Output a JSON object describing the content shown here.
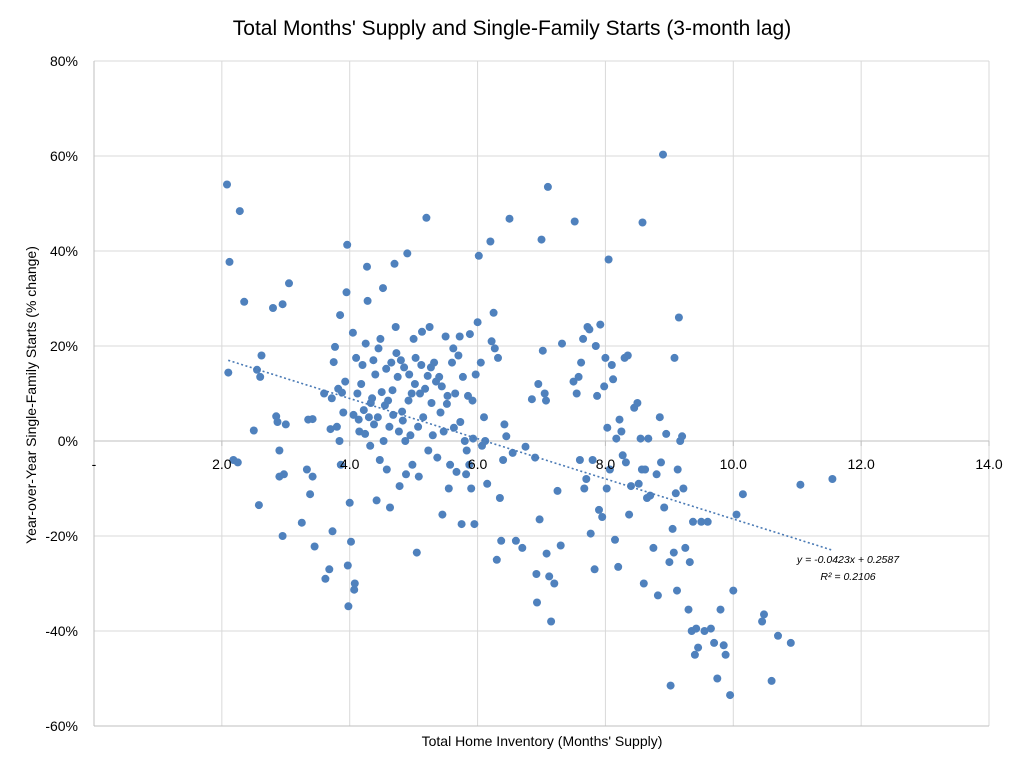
{
  "chart_data": {
    "type": "scatter",
    "title": "Total Months' Supply and Single-Family Starts (3-month lag)",
    "xlabel": "Total Home Inventory (Months' Supply)",
    "ylabel": "Year-over-Year Single-Family Starts (% change)",
    "xlim": [
      0,
      14
    ],
    "ylim": [
      -0.6,
      0.8
    ],
    "x_ticks": [
      {
        "value": 0,
        "label": "-"
      },
      {
        "value": 2,
        "label": "2.0"
      },
      {
        "value": 4,
        "label": "4.0"
      },
      {
        "value": 6,
        "label": "6.0"
      },
      {
        "value": 8,
        "label": "8.0"
      },
      {
        "value": 10,
        "label": "10.0"
      },
      {
        "value": 12,
        "label": "12.0"
      },
      {
        "value": 14,
        "label": "14.0"
      }
    ],
    "y_ticks": [
      {
        "value": 0.8,
        "label": "80%"
      },
      {
        "value": 0.6,
        "label": "60%"
      },
      {
        "value": 0.4,
        "label": "40%"
      },
      {
        "value": 0.2,
        "label": "20%"
      },
      {
        "value": 0.0,
        "label": "0%"
      },
      {
        "value": -0.2,
        "label": "-20%"
      },
      {
        "value": -0.4,
        "label": "-40%"
      },
      {
        "value": -0.6,
        "label": "-60%"
      }
    ],
    "grid": true,
    "marker_color": "#4f81bd",
    "trend_color": "#4a7ab5",
    "trendline": {
      "slope": -0.0423,
      "intercept": 0.2587,
      "x_range": [
        2.1,
        11.55
      ],
      "equation_label": "y = -0.0423x + 0.2587",
      "r2_label": "R² = 0.2106"
    },
    "points": [
      [
        2.08,
        0.54
      ],
      [
        2.12,
        0.377
      ],
      [
        2.28,
        0.484
      ],
      [
        2.35,
        0.293
      ],
      [
        2.1,
        0.144
      ],
      [
        2.18,
        -0.04
      ],
      [
        2.25,
        -0.045
      ],
      [
        2.5,
        0.022
      ],
      [
        2.55,
        0.15
      ],
      [
        2.6,
        0.135
      ],
      [
        2.62,
        0.18
      ],
      [
        2.58,
        -0.135
      ],
      [
        2.8,
        0.28
      ],
      [
        2.95,
        0.288
      ],
      [
        3.05,
        0.332
      ],
      [
        2.85,
        0.052
      ],
      [
        2.87,
        0.04
      ],
      [
        2.9,
        -0.02
      ],
      [
        2.9,
        -0.075
      ],
      [
        3.0,
        0.035
      ],
      [
        2.97,
        -0.07
      ],
      [
        2.95,
        -0.2
      ],
      [
        3.25,
        -0.172
      ],
      [
        3.35,
        0.045
      ],
      [
        3.33,
        -0.06
      ],
      [
        3.38,
        -0.112
      ],
      [
        3.42,
        0.046
      ],
      [
        3.42,
        -0.075
      ],
      [
        3.45,
        -0.222
      ],
      [
        3.6,
        0.1
      ],
      [
        3.62,
        -0.29
      ],
      [
        3.68,
        -0.27
      ],
      [
        3.7,
        0.025
      ],
      [
        3.72,
        0.09
      ],
      [
        3.73,
        -0.19
      ],
      [
        3.75,
        0.166
      ],
      [
        3.77,
        0.198
      ],
      [
        3.8,
        0.03
      ],
      [
        3.82,
        0.11
      ],
      [
        3.84,
        0.0
      ],
      [
        3.85,
        0.265
      ],
      [
        3.86,
        -0.05
      ],
      [
        3.88,
        0.102
      ],
      [
        3.9,
        0.06
      ],
      [
        3.93,
        0.125
      ],
      [
        3.95,
        0.313
      ],
      [
        3.96,
        0.413
      ],
      [
        3.97,
        -0.262
      ],
      [
        3.98,
        -0.348
      ],
      [
        4.0,
        -0.13
      ],
      [
        4.02,
        -0.212
      ],
      [
        4.05,
        0.228
      ],
      [
        4.06,
        0.055
      ],
      [
        4.07,
        -0.313
      ],
      [
        4.08,
        -0.3
      ],
      [
        4.1,
        0.175
      ],
      [
        4.12,
        0.1
      ],
      [
        4.14,
        0.045
      ],
      [
        4.15,
        0.02
      ],
      [
        4.18,
        0.12
      ],
      [
        4.2,
        0.16
      ],
      [
        4.22,
        0.065
      ],
      [
        4.24,
        0.015
      ],
      [
        4.25,
        0.205
      ],
      [
        4.27,
        0.367
      ],
      [
        4.28,
        0.295
      ],
      [
        4.3,
        0.05
      ],
      [
        4.32,
        -0.01
      ],
      [
        4.33,
        0.08
      ],
      [
        4.35,
        0.09
      ],
      [
        4.37,
        0.17
      ],
      [
        4.38,
        0.035
      ],
      [
        4.4,
        0.14
      ],
      [
        4.42,
        -0.125
      ],
      [
        4.44,
        0.05
      ],
      [
        4.45,
        0.195
      ],
      [
        4.47,
        -0.04
      ],
      [
        4.48,
        0.215
      ],
      [
        4.5,
        0.103
      ],
      [
        4.52,
        0.322
      ],
      [
        4.53,
        0.0
      ],
      [
        4.55,
        0.075
      ],
      [
        4.57,
        0.152
      ],
      [
        4.58,
        -0.06
      ],
      [
        4.6,
        0.085
      ],
      [
        4.62,
        0.03
      ],
      [
        4.63,
        -0.14
      ],
      [
        4.65,
        0.165
      ],
      [
        4.67,
        0.107
      ],
      [
        4.68,
        0.055
      ],
      [
        4.7,
        0.373
      ],
      [
        4.72,
        0.24
      ],
      [
        4.73,
        0.185
      ],
      [
        4.75,
        0.135
      ],
      [
        4.77,
        0.02
      ],
      [
        4.78,
        -0.095
      ],
      [
        4.8,
        0.17
      ],
      [
        4.82,
        0.062
      ],
      [
        4.83,
        0.043
      ],
      [
        4.85,
        0.155
      ],
      [
        4.87,
        0.0
      ],
      [
        4.88,
        -0.07
      ],
      [
        4.9,
        0.395
      ],
      [
        4.92,
        0.085
      ],
      [
        4.93,
        0.14
      ],
      [
        4.95,
        0.012
      ],
      [
        4.97,
        0.1
      ],
      [
        4.98,
        -0.05
      ],
      [
        5.0,
        0.215
      ],
      [
        5.02,
        0.12
      ],
      [
        5.03,
        0.175
      ],
      [
        5.05,
        -0.235
      ],
      [
        5.07,
        0.03
      ],
      [
        5.08,
        -0.075
      ],
      [
        5.1,
        0.1
      ],
      [
        5.12,
        0.16
      ],
      [
        5.13,
        0.23
      ],
      [
        5.15,
        0.05
      ],
      [
        5.18,
        0.11
      ],
      [
        5.2,
        0.47
      ],
      [
        5.22,
        0.137
      ],
      [
        5.23,
        -0.02
      ],
      [
        5.25,
        0.24
      ],
      [
        5.27,
        0.155
      ],
      [
        5.28,
        0.08
      ],
      [
        5.3,
        0.012
      ],
      [
        5.32,
        0.165
      ],
      [
        5.35,
        0.125
      ],
      [
        5.37,
        -0.035
      ],
      [
        5.4,
        0.135
      ],
      [
        5.42,
        0.06
      ],
      [
        5.44,
        0.115
      ],
      [
        5.45,
        -0.155
      ],
      [
        5.47,
        0.02
      ],
      [
        5.5,
        0.22
      ],
      [
        5.52,
        0.078
      ],
      [
        5.53,
        0.095
      ],
      [
        5.55,
        -0.1
      ],
      [
        5.57,
        -0.05
      ],
      [
        5.6,
        0.165
      ],
      [
        5.62,
        0.195
      ],
      [
        5.63,
        0.028
      ],
      [
        5.65,
        0.1
      ],
      [
        5.67,
        -0.065
      ],
      [
        5.7,
        0.18
      ],
      [
        5.72,
        0.22
      ],
      [
        5.73,
        0.04
      ],
      [
        5.75,
        -0.175
      ],
      [
        5.77,
        0.135
      ],
      [
        5.8,
        0.0
      ],
      [
        5.82,
        -0.07
      ],
      [
        5.83,
        -0.02
      ],
      [
        5.85,
        0.095
      ],
      [
        5.87,
        -0.05
      ],
      [
        5.88,
        0.225
      ],
      [
        5.9,
        -0.1
      ],
      [
        5.92,
        0.085
      ],
      [
        5.93,
        0.005
      ],
      [
        5.95,
        -0.175
      ],
      [
        5.97,
        0.14
      ],
      [
        6.0,
        0.25
      ],
      [
        6.02,
        0.39
      ],
      [
        6.05,
        0.165
      ],
      [
        6.07,
        -0.01
      ],
      [
        6.1,
        0.05
      ],
      [
        6.12,
        0.0
      ],
      [
        6.15,
        -0.09
      ],
      [
        6.2,
        0.42
      ],
      [
        6.22,
        0.21
      ],
      [
        6.25,
        0.27
      ],
      [
        6.27,
        0.195
      ],
      [
        6.3,
        -0.25
      ],
      [
        6.32,
        0.175
      ],
      [
        6.35,
        -0.12
      ],
      [
        6.37,
        -0.21
      ],
      [
        6.4,
        -0.04
      ],
      [
        6.42,
        0.035
      ],
      [
        6.45,
        0.01
      ],
      [
        6.5,
        0.468
      ],
      [
        6.55,
        -0.025
      ],
      [
        6.6,
        -0.21
      ],
      [
        6.7,
        -0.225
      ],
      [
        6.75,
        -0.012
      ],
      [
        6.85,
        0.088
      ],
      [
        6.9,
        -0.035
      ],
      [
        6.92,
        -0.28
      ],
      [
        6.93,
        -0.34
      ],
      [
        6.95,
        0.12
      ],
      [
        6.97,
        -0.165
      ],
      [
        7.0,
        0.424
      ],
      [
        7.02,
        0.19
      ],
      [
        7.05,
        0.1
      ],
      [
        7.07,
        0.085
      ],
      [
        7.08,
        -0.237
      ],
      [
        7.1,
        0.535
      ],
      [
        7.12,
        -0.285
      ],
      [
        7.15,
        -0.38
      ],
      [
        7.2,
        -0.3
      ],
      [
        7.25,
        -0.105
      ],
      [
        7.3,
        -0.22
      ],
      [
        7.32,
        0.205
      ],
      [
        7.5,
        0.125
      ],
      [
        7.52,
        0.462
      ],
      [
        7.55,
        0.1
      ],
      [
        7.58,
        0.135
      ],
      [
        7.6,
        -0.04
      ],
      [
        7.62,
        0.165
      ],
      [
        7.65,
        0.215
      ],
      [
        7.67,
        -0.1
      ],
      [
        7.7,
        -0.08
      ],
      [
        7.72,
        0.24
      ],
      [
        7.75,
        0.235
      ],
      [
        7.77,
        -0.195
      ],
      [
        7.8,
        -0.04
      ],
      [
        7.83,
        -0.27
      ],
      [
        7.85,
        0.2
      ],
      [
        7.87,
        0.095
      ],
      [
        7.9,
        -0.145
      ],
      [
        7.92,
        0.245
      ],
      [
        7.95,
        -0.16
      ],
      [
        7.98,
        0.115
      ],
      [
        8.0,
        0.175
      ],
      [
        8.02,
        -0.1
      ],
      [
        8.03,
        0.028
      ],
      [
        8.05,
        0.382
      ],
      [
        8.07,
        -0.06
      ],
      [
        8.1,
        0.16
      ],
      [
        8.12,
        0.13
      ],
      [
        8.15,
        -0.208
      ],
      [
        8.17,
        0.005
      ],
      [
        8.2,
        -0.265
      ],
      [
        8.22,
        0.045
      ],
      [
        8.25,
        0.02
      ],
      [
        8.27,
        -0.03
      ],
      [
        8.3,
        0.175
      ],
      [
        8.32,
        -0.045
      ],
      [
        8.35,
        0.18
      ],
      [
        8.37,
        -0.155
      ],
      [
        8.4,
        -0.095
      ],
      [
        8.45,
        0.07
      ],
      [
        8.5,
        0.08
      ],
      [
        8.52,
        -0.09
      ],
      [
        8.55,
        0.005
      ],
      [
        8.57,
        -0.06
      ],
      [
        8.58,
        0.46
      ],
      [
        8.6,
        -0.3
      ],
      [
        8.62,
        -0.06
      ],
      [
        8.65,
        -0.12
      ],
      [
        8.67,
        0.005
      ],
      [
        8.7,
        -0.115
      ],
      [
        8.75,
        -0.225
      ],
      [
        8.8,
        -0.07
      ],
      [
        8.82,
        -0.325
      ],
      [
        8.85,
        0.05
      ],
      [
        8.87,
        -0.045
      ],
      [
        8.9,
        0.603
      ],
      [
        8.92,
        -0.14
      ],
      [
        8.95,
        0.015
      ],
      [
        9.0,
        -0.255
      ],
      [
        9.02,
        -0.515
      ],
      [
        9.05,
        -0.185
      ],
      [
        9.07,
        -0.235
      ],
      [
        9.08,
        0.175
      ],
      [
        9.1,
        -0.11
      ],
      [
        9.12,
        -0.315
      ],
      [
        9.13,
        -0.06
      ],
      [
        9.15,
        0.26
      ],
      [
        9.17,
        0.0
      ],
      [
        9.2,
        0.01
      ],
      [
        9.22,
        -0.1
      ],
      [
        9.25,
        -0.225
      ],
      [
        9.3,
        -0.355
      ],
      [
        9.32,
        -0.255
      ],
      [
        9.35,
        -0.4
      ],
      [
        9.37,
        -0.17
      ],
      [
        9.4,
        -0.45
      ],
      [
        9.42,
        -0.395
      ],
      [
        9.45,
        -0.435
      ],
      [
        9.5,
        -0.17
      ],
      [
        9.55,
        -0.4
      ],
      [
        9.6,
        -0.17
      ],
      [
        9.65,
        -0.395
      ],
      [
        9.7,
        -0.425
      ],
      [
        9.75,
        -0.5
      ],
      [
        9.8,
        -0.355
      ],
      [
        9.85,
        -0.43
      ],
      [
        9.88,
        -0.45
      ],
      [
        9.95,
        -0.535
      ],
      [
        10.0,
        -0.315
      ],
      [
        10.05,
        -0.155
      ],
      [
        10.15,
        -0.112
      ],
      [
        10.45,
        -0.38
      ],
      [
        10.48,
        -0.365
      ],
      [
        10.6,
        -0.505
      ],
      [
        10.7,
        -0.41
      ],
      [
        10.9,
        -0.425
      ],
      [
        11.05,
        -0.092
      ],
      [
        11.55,
        -0.08
      ]
    ]
  }
}
